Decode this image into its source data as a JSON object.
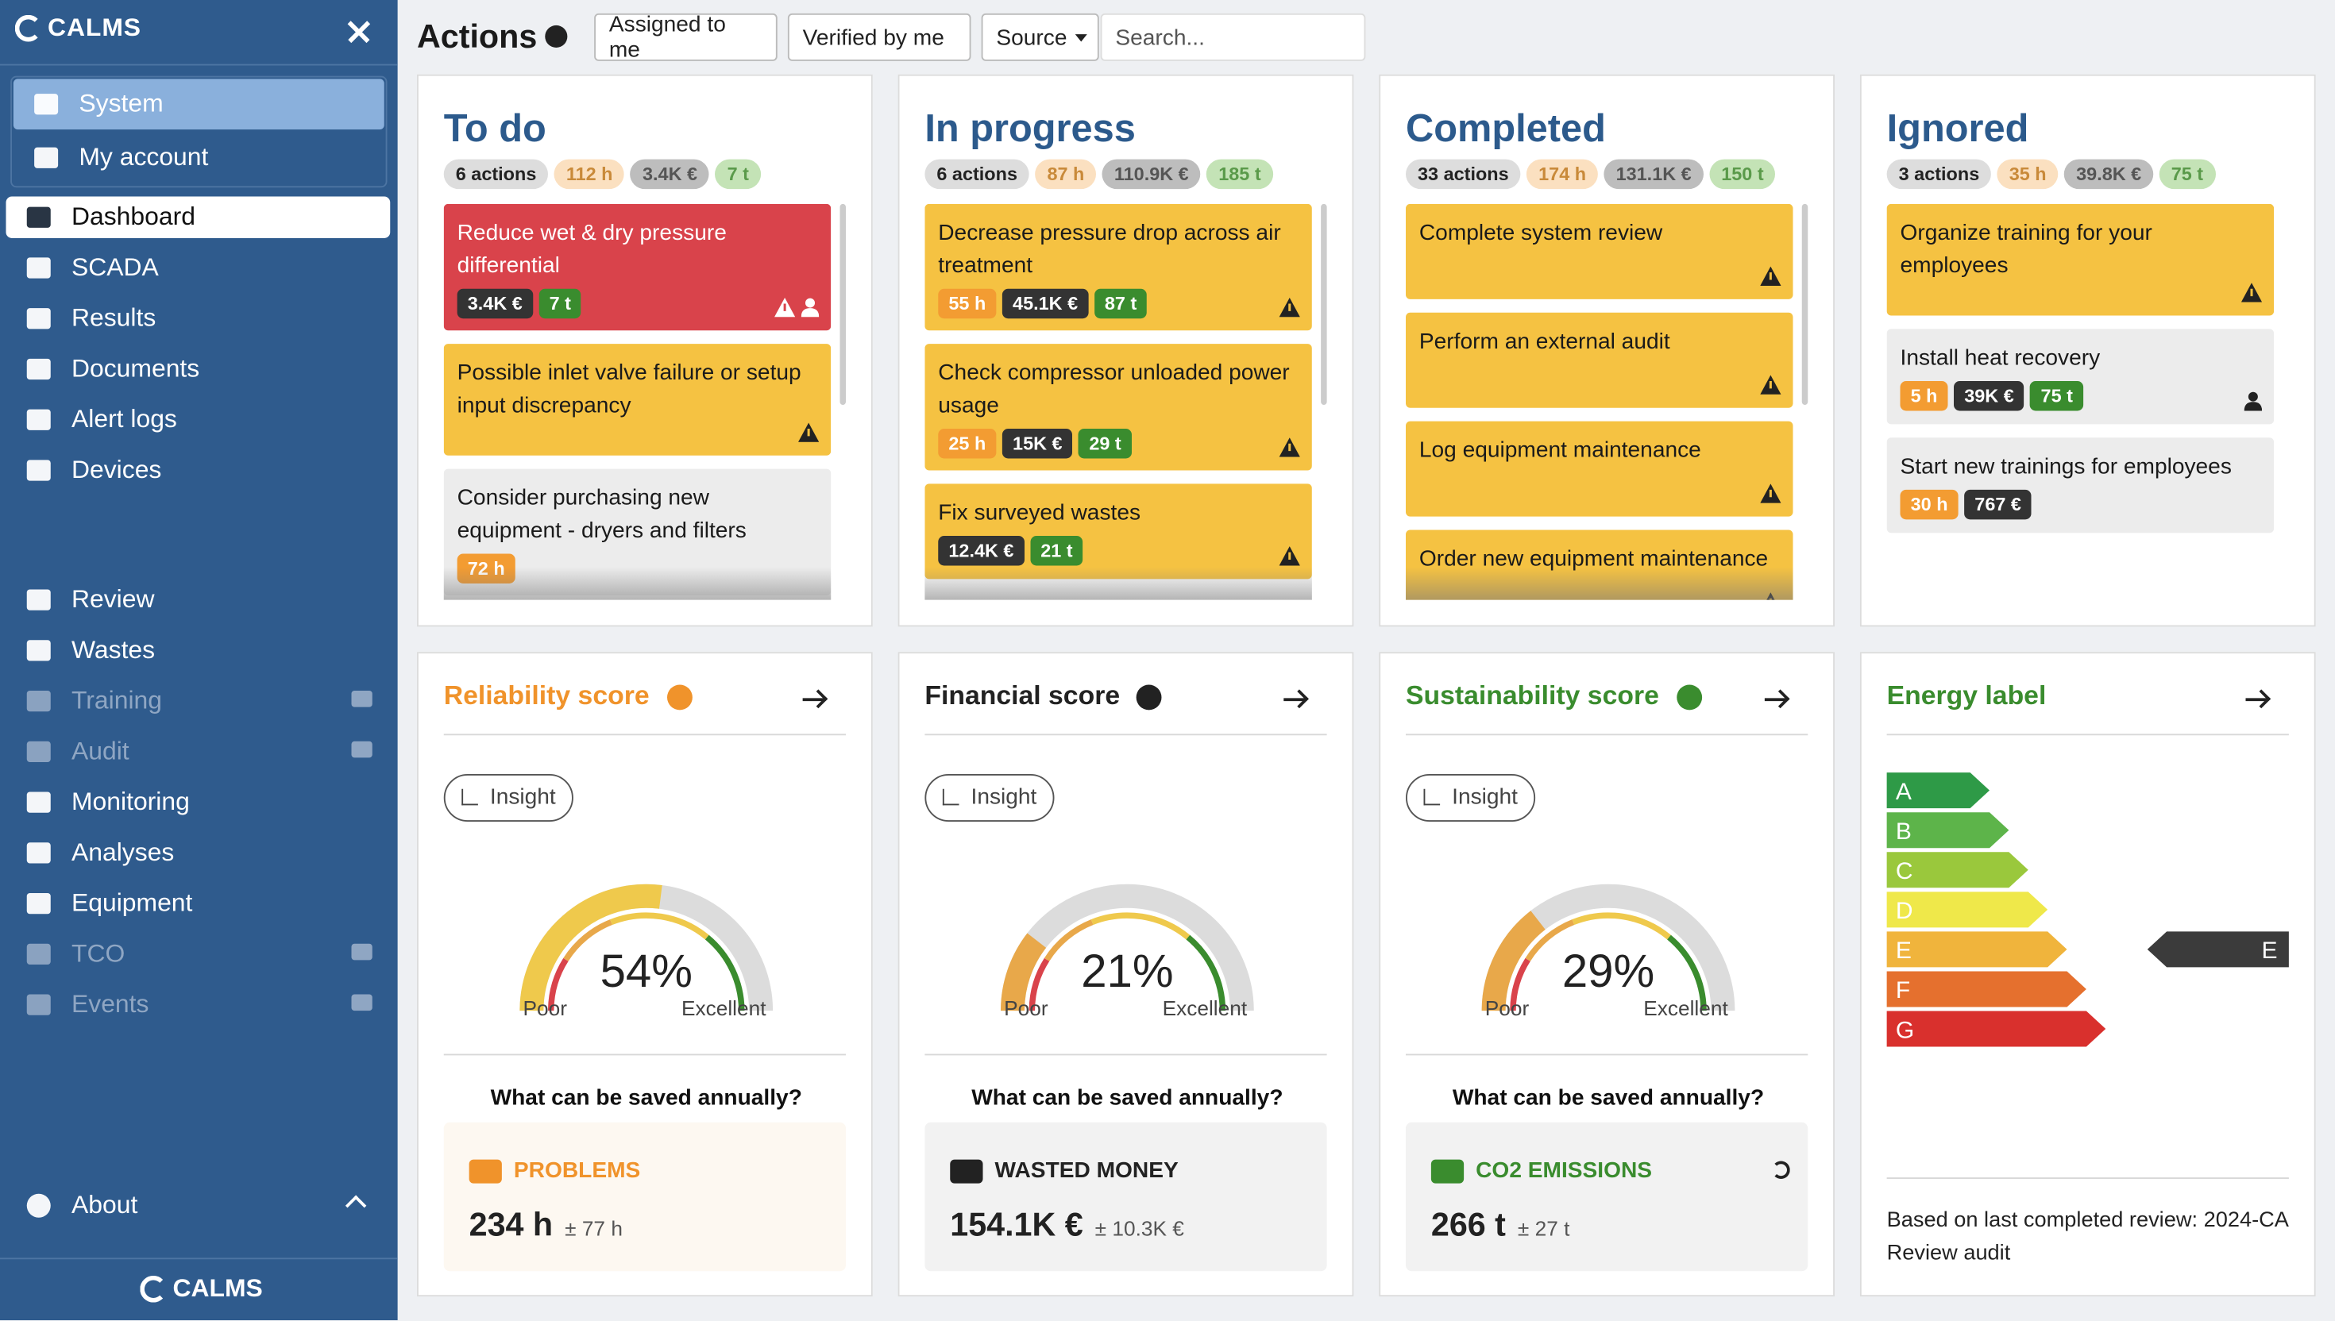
{
  "sidebar": {
    "brand": "CALMS",
    "account_menu": [
      "System",
      "My account"
    ],
    "nav": [
      {
        "label": "Dashboard",
        "active": true
      },
      {
        "label": "SCADA"
      },
      {
        "label": "Results"
      },
      {
        "label": "Documents"
      },
      {
        "label": "Alert logs"
      },
      {
        "label": "Devices"
      }
    ],
    "tools": [
      {
        "label": "Review"
      },
      {
        "label": "Wastes"
      },
      {
        "label": "Training",
        "locked": true
      },
      {
        "label": "Audit",
        "locked": true
      },
      {
        "label": "Monitoring"
      },
      {
        "label": "Analyses"
      },
      {
        "label": "Equipment"
      },
      {
        "label": "TCO",
        "locked": true
      },
      {
        "label": "Events",
        "locked": true
      }
    ],
    "about": "About",
    "footer_brand": "CALMS"
  },
  "header": {
    "title": "Actions",
    "filters": [
      "Assigned to me",
      "Verified by me",
      "Source"
    ],
    "search_placeholder": "Search..."
  },
  "columns": [
    {
      "title": "To do",
      "summary": [
        "6 actions",
        "112 h",
        "3.4K €",
        "7 t"
      ],
      "cards": [
        {
          "text": "Reduce wet & dry pressure differential",
          "color": "red",
          "tags": [
            {
              "label": "3.4K €",
              "kind": "money"
            },
            {
              "label": "7 t",
              "kind": "co2"
            }
          ],
          "warning": true,
          "assigned": true
        },
        {
          "text": "Possible inlet valve failure or setup input discrepancy",
          "color": "yellow",
          "tags": [],
          "warning": true
        },
        {
          "text": "Consider purchasing new equipment - dryers and filters",
          "color": "gray",
          "tags": [
            {
              "label": "72 h",
              "kind": "hours"
            }
          ]
        }
      ]
    },
    {
      "title": "In progress",
      "summary": [
        "6 actions",
        "87 h",
        "110.9K €",
        "185 t"
      ],
      "cards": [
        {
          "text": "Decrease pressure drop across air treatment",
          "color": "yellow",
          "tags": [
            {
              "label": "55 h",
              "kind": "hours"
            },
            {
              "label": "45.1K €",
              "kind": "money"
            },
            {
              "label": "87 t",
              "kind": "co2"
            }
          ],
          "warning": true
        },
        {
          "text": "Check compressor unloaded power usage",
          "color": "yellow",
          "tags": [
            {
              "label": "25 h",
              "kind": "hours"
            },
            {
              "label": "15K €",
              "kind": "money"
            },
            {
              "label": "29 t",
              "kind": "co2"
            }
          ],
          "warning": true
        },
        {
          "text": "Fix surveyed wastes",
          "color": "yellow",
          "tags": [
            {
              "label": "12.4K €",
              "kind": "money"
            },
            {
              "label": "21 t",
              "kind": "co2"
            }
          ],
          "warning": true
        }
      ]
    },
    {
      "title": "Completed",
      "summary": [
        "33 actions",
        "174 h",
        "131.1K €",
        "150 t"
      ],
      "cards": [
        {
          "text": "Complete system review",
          "color": "yellow",
          "tags": [],
          "warning": true
        },
        {
          "text": "Perform an external audit",
          "color": "yellow",
          "tags": [],
          "warning": true
        },
        {
          "text": "Log equipment maintenance",
          "color": "yellow",
          "tags": [],
          "warning": true
        },
        {
          "text": "Order new equipment maintenance",
          "color": "yellow",
          "tags": [],
          "warning": true
        }
      ]
    },
    {
      "title": "Ignored",
      "summary": [
        "3 actions",
        "35 h",
        "39.8K €",
        "75 t"
      ],
      "cards": [
        {
          "text": "Organize training for your employees",
          "color": "yellow",
          "tags": [],
          "warning": true
        },
        {
          "text": "Install heat recovery",
          "color": "gray",
          "tags": [
            {
              "label": "5 h",
              "kind": "hours"
            },
            {
              "label": "39K €",
              "kind": "money"
            },
            {
              "label": "75 t",
              "kind": "co2"
            }
          ],
          "assigned": true
        },
        {
          "text": "Start new trainings for employees",
          "color": "gray",
          "tags": [
            {
              "label": "30 h",
              "kind": "hours"
            },
            {
              "label": "767 €",
              "kind": "money"
            }
          ]
        }
      ]
    }
  ],
  "scores": [
    {
      "title": "Reliability score",
      "color": "#f0932b",
      "gauge_color": "#efc94c",
      "box_color": "#fdf8f1",
      "insight": "Insight",
      "value": 54,
      "value_label": "54%",
      "low": "Poor",
      "high": "Excellent",
      "question": "What can be saved annually?",
      "saving": {
        "label": "PROBLEMS",
        "amount": "234 h",
        "error": "± 77 h"
      }
    },
    {
      "title": "Financial score",
      "color": "#222222",
      "gauge_color": "#e8a84a",
      "box_color": "#f2f2f2",
      "insight": "Insight",
      "value": 21,
      "value_label": "21%",
      "low": "Poor",
      "high": "Excellent",
      "question": "What can be saved annually?",
      "saving": {
        "label": "WASTED MONEY",
        "amount": "154.1K €",
        "error": "± 10.3K €"
      }
    },
    {
      "title": "Sustainability score",
      "color": "#3a8c2e",
      "gauge_color": "#e8a84a",
      "box_color": "#f2f2f2",
      "insight": "Insight",
      "value": 29,
      "value_label": "29%",
      "low": "Poor",
      "high": "Excellent",
      "question": "What can be saved annually?",
      "saving": {
        "label": "CO2 EMISSIONS",
        "amount": "266 t",
        "error": "± 27 t"
      }
    }
  ],
  "energy": {
    "title": "Energy label",
    "classes": [
      "A",
      "B",
      "C",
      "D",
      "E",
      "F",
      "G"
    ],
    "current": "E",
    "note": "Based on last completed review: 2024-CA Review audit"
  }
}
